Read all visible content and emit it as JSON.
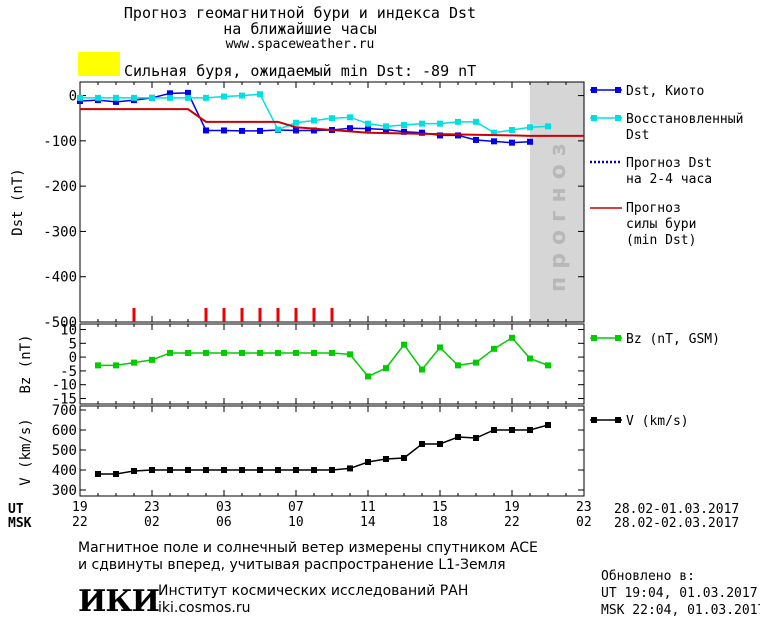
{
  "header": {
    "line1": "Прогноз геомагнитной бури и индекса Dst",
    "line2": "на ближайшие часы",
    "url": "www.spaceweather.ru",
    "storm_label": "Сильная буря, ожидаемый min Dst: -89 nT",
    "storm_color": "#ffff00"
  },
  "legend": {
    "dst_kyoto": "Dst, Киото",
    "restored_1": "Восстановленный",
    "restored_2": "Dst",
    "forecast_1": "Прогноз Dst",
    "forecast_2": "на 2-4 часа",
    "storm_1": "Прогноз",
    "storm_2": "силы бури",
    "storm_3": "(min Dst)",
    "bz": "Bz (nT, GSM)",
    "v": "V (km/s)"
  },
  "forecast_zone_label": "прогноз",
  "time_axis": {
    "ut_label": "UT",
    "msk_label": "MSK",
    "ut_ticks": [
      "19",
      "23",
      "03",
      "07",
      "11",
      "15",
      "19",
      "23"
    ],
    "msk_ticks": [
      "22",
      "02",
      "06",
      "10",
      "14",
      "18",
      "22",
      "02"
    ],
    "ut_range": "28.02-01.03.2017",
    "msk_range": "28.02-02.03.2017"
  },
  "chart_data": [
    {
      "type": "line",
      "ylabel": "Dst (nT)",
      "ylim": [
        -500,
        30
      ],
      "yticks": [
        0,
        -100,
        -200,
        -300,
        -400,
        -500
      ],
      "x_hours_range": [
        0,
        28
      ],
      "forecast_zone_hours": [
        25,
        29
      ],
      "series": [
        {
          "name": "Dst, Киото",
          "color": "#0000ee",
          "x": [
            0,
            1,
            2,
            3,
            4,
            5,
            6,
            7,
            8,
            9,
            10,
            11,
            12,
            13,
            14,
            15,
            16,
            17,
            18,
            19,
            20,
            21,
            22,
            23,
            24,
            25
          ],
          "values": [
            -12,
            -10,
            -14,
            -10,
            -5,
            5,
            6,
            -77,
            -77,
            -78,
            -78,
            -76,
            -77,
            -77,
            -76,
            -72,
            -73,
            -75,
            -80,
            -82,
            -88,
            -88,
            -98,
            -101,
            -104,
            -102
          ]
        },
        {
          "name": "Восстановленный Dst",
          "color": "#00e0e0",
          "x": [
            0,
            1,
            2,
            3,
            4,
            5,
            6,
            7,
            8,
            9,
            10,
            11,
            12,
            13,
            14,
            15,
            16,
            17,
            18,
            19,
            20,
            21,
            22,
            23,
            24,
            25,
            26
          ],
          "values": [
            -5,
            -5,
            -5,
            -5,
            -5,
            -5,
            -5,
            -5,
            -2,
            0,
            3,
            -75,
            -60,
            -55,
            -50,
            -48,
            -62,
            -68,
            -65,
            -62,
            -62,
            -58,
            -58,
            -82,
            -76,
            -70,
            -68
          ]
        },
        {
          "name": "Прогноз силы бури (min Dst)",
          "color": "#cc0000",
          "x": [
            0,
            5,
            6,
            7,
            11,
            12,
            16,
            20,
            24,
            25,
            28
          ],
          "values": [
            -30,
            -30,
            -30,
            -58,
            -58,
            -70,
            -82,
            -85,
            -88,
            -89,
            -89
          ]
        }
      ],
      "markers_hours": [
        3,
        7,
        8,
        9,
        10,
        11,
        12,
        13,
        14
      ]
    },
    {
      "type": "line",
      "ylabel": "Bz (nT)",
      "ylim": [
        -17,
        12
      ],
      "yticks": [
        10,
        5,
        0,
        -5,
        -10,
        -15
      ],
      "series": [
        {
          "name": "Bz (nT, GSM)",
          "color": "#00cc00",
          "x": [
            1,
            2,
            3,
            4,
            5,
            6,
            7,
            8,
            9,
            10,
            11,
            12,
            13,
            14,
            15,
            16,
            17,
            18,
            19,
            20,
            21,
            22,
            23,
            24,
            25,
            26
          ],
          "values": [
            -3,
            -3,
            -2,
            -1,
            1.5,
            1.5,
            1.5,
            1.5,
            1.5,
            1.5,
            1.5,
            1.5,
            1.5,
            1.5,
            1,
            -7,
            -4,
            4.5,
            -4.5,
            3.5,
            -3,
            -2,
            3,
            7,
            -0.5,
            -3
          ]
        }
      ]
    },
    {
      "type": "line",
      "ylabel": "V (km/s)",
      "ylim": [
        270,
        720
      ],
      "yticks": [
        700,
        600,
        500,
        400,
        300
      ],
      "series": [
        {
          "name": "V (km/s)",
          "color": "#000000",
          "x": [
            1,
            2,
            3,
            4,
            5,
            6,
            7,
            8,
            9,
            10,
            11,
            12,
            13,
            14,
            15,
            16,
            17,
            18,
            19,
            20,
            21,
            22,
            23,
            24,
            25,
            26
          ],
          "values": [
            380,
            380,
            395,
            400,
            400,
            400,
            400,
            400,
            400,
            400,
            400,
            400,
            400,
            400,
            408,
            440,
            455,
            460,
            530,
            530,
            565,
            560,
            600,
            600,
            600,
            625
          ]
        }
      ]
    }
  ],
  "footer": {
    "note1": "Магнитное поле и солнечный ветер измерены спутником ACE",
    "note2": "и сдвинуты вперед, учитывая распространение L1-Земля",
    "logo_text": "ИКИ",
    "institute": "Институт космических исследований РАН",
    "site": "iki.cosmos.ru",
    "updated_label": "Обновлено в:",
    "updated_ut": "UT  19:04, 01.03.2017",
    "updated_msk": "MSK 22:04, 01.03.2017"
  }
}
